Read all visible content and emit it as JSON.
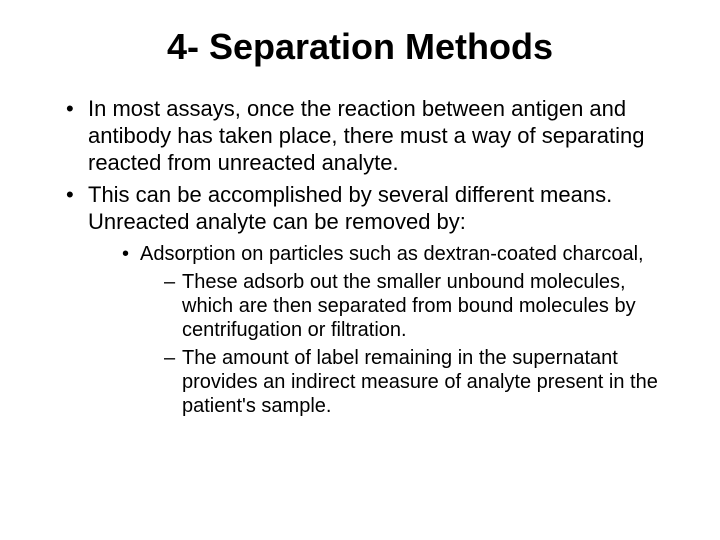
{
  "slide": {
    "title": "4- Separation Methods",
    "title_fontsize": 36,
    "title_weight": 700,
    "background_color": "#ffffff",
    "text_color": "#000000",
    "font_family": "Arial",
    "bullets": {
      "level1_fontsize": 22,
      "level1_lineheight": 1.22,
      "level2_fontsize": 20,
      "level2_lineheight": 1.2,
      "level3_fontsize": 20,
      "level3_lineheight": 1.2,
      "items": [
        "In most assays, once the reaction between antigen and antibody has taken place, there must a way of separating reacted from unreacted analyte.",
        "This can be accomplished by several different means. Unreacted analyte can be removed by:"
      ],
      "sub": [
        "Adsorption on particles such as dextran-coated charcoal,"
      ],
      "subsub": [
        "These adsorb out the smaller unbound molecules, which are then separated from bound molecules by centrifugation or filtration.",
        "The amount of label remaining in the supernatant provides an indirect measure of analyte present in the patient's sample."
      ]
    }
  }
}
